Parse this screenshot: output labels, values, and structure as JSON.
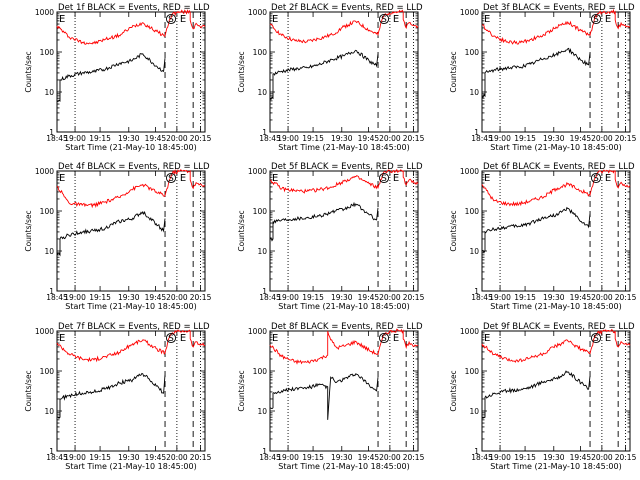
{
  "chart_data": [
    {
      "type": "line",
      "title": "Det 1f BLACK = Events, RED = LLD",
      "xlabel": "Start Time (21-May-10 18:45:00)",
      "ylabel": "Counts/sec",
      "yscale": "log",
      "ylim": [
        1,
        1000
      ],
      "xlim": [
        0,
        100
      ],
      "ytick_labels": [
        "1000",
        "100",
        "10",
        "1"
      ],
      "xtick_labels": [
        "18:45",
        "19:00",
        "19:15",
        "19:30",
        "19:45",
        "20:00",
        "20:15"
      ],
      "markers": {
        "left": "E",
        "middle": [
          "S",
          "E"
        ]
      },
      "series": [
        {
          "name": "LLD",
          "color": "#ff0000",
          "x": [
            0,
            8,
            17,
            25,
            33,
            42,
            50,
            58,
            67,
            73,
            73,
            76,
            78,
            83,
            87,
            90,
            90,
            92,
            94,
            96,
            98,
            100
          ],
          "y": [
            450,
            240,
            175,
            165,
            210,
            260,
            410,
            540,
            330,
            250,
            250,
            650,
            900,
            1000,
            1000,
            1000,
            620,
            380,
            520,
            460,
            440,
            430
          ]
        },
        {
          "name": "Events",
          "color": "#000000",
          "x": [
            0,
            2,
            2,
            8,
            17,
            25,
            33,
            42,
            50,
            58,
            67,
            72,
            73
          ],
          "y": [
            6,
            6,
            20,
            25,
            30,
            32,
            38,
            52,
            60,
            90,
            45,
            33,
            70
          ]
        }
      ]
    },
    {
      "type": "line",
      "title": "Det 2f BLACK = Events, RED = LLD",
      "xlabel": "Start Time (21-May-10 18:45:00)",
      "ylabel": "Counts/sec",
      "yscale": "log",
      "ylim": [
        1,
        1000
      ],
      "xlim": [
        0,
        100
      ],
      "ytick_labels": [
        "1000",
        "100",
        "10",
        "1"
      ],
      "xtick_labels": [
        "18:45",
        "19:00",
        "19:15",
        "19:30",
        "19:45",
        "20:00",
        "20:15"
      ],
      "markers": {
        "left": "E",
        "middle": [
          "S",
          "E"
        ]
      },
      "series": [
        {
          "name": "LLD",
          "color": "#ff0000",
          "x": [
            0,
            8,
            17,
            25,
            33,
            42,
            50,
            58,
            67,
            73,
            73,
            76,
            78,
            83,
            87,
            90,
            90,
            92,
            94,
            96,
            98,
            100
          ],
          "y": [
            480,
            260,
            190,
            180,
            215,
            270,
            430,
            580,
            350,
            270,
            270,
            700,
            900,
            1000,
            1000,
            1000,
            650,
            400,
            540,
            470,
            450,
            440
          ]
        },
        {
          "name": "Events",
          "color": "#000000",
          "x": [
            0,
            2,
            2,
            8,
            17,
            25,
            33,
            42,
            50,
            58,
            67,
            72,
            73
          ],
          "y": [
            7,
            7,
            28,
            33,
            38,
            40,
            48,
            65,
            80,
            110,
            60,
            45,
            90
          ]
        }
      ]
    },
    {
      "type": "line",
      "title": "Det 3f BLACK = Events, RED = LLD",
      "xlabel": "Start Time (21-May-10 18:45:00)",
      "ylabel": "Counts/sec",
      "yscale": "log",
      "ylim": [
        1,
        1000
      ],
      "xlim": [
        0,
        100
      ],
      "ytick_labels": [
        "1000",
        "100",
        "10",
        "1"
      ],
      "xtick_labels": [
        "18:45",
        "19:00",
        "19:15",
        "19:30",
        "19:45",
        "20:00",
        "20:15"
      ],
      "markers": {
        "left": "E",
        "middle": [
          "S",
          "E"
        ]
      },
      "series": [
        {
          "name": "LLD",
          "color": "#ff0000",
          "x": [
            0,
            8,
            17,
            25,
            33,
            42,
            50,
            58,
            67,
            73,
            73,
            76,
            78,
            83,
            87,
            90,
            90,
            92,
            94,
            96,
            98,
            100
          ],
          "y": [
            470,
            250,
            180,
            170,
            205,
            265,
            420,
            560,
            340,
            260,
            260,
            680,
            900,
            1000,
            1000,
            1000,
            630,
            390,
            530,
            460,
            445,
            430
          ]
        },
        {
          "name": "Events",
          "color": "#000000",
          "x": [
            0,
            2,
            2,
            8,
            17,
            25,
            33,
            42,
            50,
            58,
            67,
            72,
            73
          ],
          "y": [
            8,
            8,
            30,
            35,
            40,
            42,
            50,
            70,
            85,
            120,
            62,
            48,
            95
          ]
        }
      ]
    },
    {
      "type": "line",
      "title": "Det 4f BLACK = Events, RED = LLD",
      "xlabel": "Start Time (21-May-10 18:45:00)",
      "ylabel": "Counts/sec",
      "yscale": "log",
      "ylim": [
        1,
        1000
      ],
      "xlim": [
        0,
        100
      ],
      "ytick_labels": [
        "1000",
        "100",
        "10",
        "1"
      ],
      "xtick_labels": [
        "18:45",
        "19:00",
        "19:15",
        "19:30",
        "19:45",
        "20:00",
        "20:15"
      ],
      "markers": {
        "left": "E",
        "middle": [
          "S",
          "E"
        ]
      },
      "series": [
        {
          "name": "LLD",
          "color": "#ff0000",
          "x": [
            0,
            8,
            17,
            25,
            33,
            42,
            50,
            58,
            67,
            73,
            73,
            76,
            78,
            83,
            87,
            90,
            90,
            92,
            94,
            96,
            98,
            100
          ],
          "y": [
            420,
            160,
            140,
            140,
            170,
            220,
            340,
            460,
            300,
            240,
            240,
            600,
            900,
            1000,
            1000,
            1000,
            600,
            370,
            510,
            450,
            430,
            420
          ]
        },
        {
          "name": "Events",
          "color": "#000000",
          "x": [
            0,
            2,
            2,
            8,
            17,
            25,
            33,
            42,
            50,
            58,
            67,
            72,
            73
          ],
          "y": [
            8,
            8,
            20,
            25,
            30,
            32,
            38,
            55,
            62,
            95,
            48,
            32,
            65
          ]
        }
      ]
    },
    {
      "type": "line",
      "title": "Det 5f BLACK = Events, RED = LLD",
      "xlabel": "Start Time (21-May-10 18:45:00)",
      "ylabel": "Counts/sec",
      "yscale": "log",
      "ylim": [
        1,
        1000
      ],
      "xlim": [
        0,
        100
      ],
      "ytick_labels": [
        "1000",
        "100",
        "10",
        "1"
      ],
      "xtick_labels": [
        "18:45",
        "19:00",
        "19:15",
        "19:30",
        "19:45",
        "20:00",
        "20:15"
      ],
      "markers": {
        "left": "E",
        "middle": [
          "S",
          "E"
        ]
      },
      "series": [
        {
          "name": "LLD",
          "color": "#ff0000",
          "x": [
            0,
            8,
            17,
            25,
            33,
            42,
            50,
            58,
            67,
            73,
            73,
            76,
            78,
            83,
            87,
            90,
            90,
            92,
            94,
            96,
            98,
            100
          ],
          "y": [
            600,
            360,
            320,
            310,
            340,
            400,
            560,
            720,
            480,
            380,
            380,
            800,
            950,
            1000,
            1000,
            1000,
            700,
            450,
            600,
            520,
            500,
            480
          ]
        },
        {
          "name": "Events",
          "color": "#000000",
          "x": [
            0,
            2,
            2,
            8,
            17,
            25,
            33,
            42,
            50,
            58,
            67,
            72,
            73
          ],
          "y": [
            20,
            20,
            55,
            60,
            65,
            68,
            75,
            95,
            110,
            150,
            80,
            60,
            120
          ]
        }
      ]
    },
    {
      "type": "line",
      "title": "Det 6f BLACK = Events, RED = LLD",
      "xlabel": "Start Time (21-May-10 18:45:00)",
      "ylabel": "Counts/sec",
      "yscale": "log",
      "ylim": [
        1,
        1000
      ],
      "xlim": [
        0,
        100
      ],
      "ytick_labels": [
        "1000",
        "100",
        "10",
        "1"
      ],
      "xtick_labels": [
        "18:45",
        "19:00",
        "19:15",
        "19:30",
        "19:45",
        "20:00",
        "20:15"
      ],
      "markers": {
        "left": "E",
        "middle": [
          "S",
          "E"
        ]
      },
      "series": [
        {
          "name": "LLD",
          "color": "#ff0000",
          "x": [
            0,
            8,
            17,
            25,
            33,
            42,
            50,
            58,
            67,
            73,
            73,
            76,
            78,
            83,
            87,
            90,
            90,
            92,
            94,
            96,
            98,
            100
          ],
          "y": [
            460,
            180,
            150,
            150,
            180,
            230,
            360,
            470,
            320,
            250,
            250,
            640,
            900,
            1000,
            1000,
            1000,
            620,
            380,
            520,
            460,
            440,
            430
          ]
        },
        {
          "name": "Events",
          "color": "#000000",
          "x": [
            0,
            2,
            2,
            8,
            17,
            25,
            33,
            42,
            50,
            58,
            67,
            72,
            73
          ],
          "y": [
            10,
            10,
            30,
            35,
            40,
            42,
            50,
            68,
            80,
            115,
            55,
            40,
            85
          ]
        }
      ]
    },
    {
      "type": "line",
      "title": "Det 7f BLACK = Events, RED = LLD",
      "xlabel": "Start Time (21-May-10 18:45:00)",
      "ylabel": "Counts/sec",
      "yscale": "log",
      "ylim": [
        1,
        1000
      ],
      "xlim": [
        0,
        100
      ],
      "ytick_labels": [
        "1000",
        "100",
        "10",
        "1"
      ],
      "xtick_labels": [
        "18:45",
        "19:00",
        "19:15",
        "19:30",
        "19:45",
        "20:00",
        "20:15"
      ],
      "markers": {
        "left": "E",
        "middle": [
          "S",
          "E"
        ]
      },
      "series": [
        {
          "name": "LLD",
          "color": "#ff0000",
          "x": [
            0,
            8,
            17,
            25,
            33,
            42,
            50,
            58,
            67,
            73,
            73,
            76,
            78,
            83,
            87,
            90,
            90,
            92,
            94,
            96,
            98,
            100
          ],
          "y": [
            500,
            270,
            200,
            190,
            230,
            290,
            450,
            600,
            360,
            280,
            280,
            700,
            900,
            1000,
            1000,
            1000,
            640,
            400,
            540,
            470,
            450,
            440
          ]
        },
        {
          "name": "Events",
          "color": "#000000",
          "x": [
            0,
            2,
            2,
            8,
            17,
            25,
            33,
            42,
            50,
            58,
            67,
            72,
            73
          ],
          "y": [
            7,
            7,
            20,
            24,
            28,
            30,
            36,
            50,
            58,
            85,
            42,
            28,
            80
          ]
        }
      ]
    },
    {
      "type": "line",
      "title": "Det 8f BLACK = Events, RED = LLD",
      "xlabel": "Start Time (21-May-10 18:45:00)",
      "ylabel": "Counts/sec",
      "yscale": "log",
      "ylim": [
        1,
        1000
      ],
      "xlim": [
        0,
        100
      ],
      "ytick_labels": [
        "1000",
        "100",
        "10",
        "1"
      ],
      "xtick_labels": [
        "18:45",
        "19:00",
        "19:15",
        "19:30",
        "19:45",
        "20:00",
        "20:15"
      ],
      "markers": {
        "left": "E",
        "middle": [
          "S",
          "E"
        ]
      },
      "series": [
        {
          "name": "LLD",
          "color": "#ff0000",
          "x": [
            0,
            8,
            17,
            25,
            33,
            39,
            39,
            41,
            45,
            50,
            58,
            67,
            73,
            73,
            76,
            78,
            83,
            87,
            90,
            90,
            92,
            94,
            96,
            98,
            100
          ],
          "y": [
            450,
            230,
            170,
            165,
            200,
            250,
            1000,
            600,
            380,
            420,
            540,
            330,
            260,
            260,
            660,
            900,
            1000,
            1000,
            1000,
            630,
            390,
            530,
            460,
            445,
            430
          ]
        },
        {
          "name": "Events",
          "color": "#000000",
          "x": [
            0,
            2,
            2,
            8,
            17,
            25,
            33,
            39,
            39,
            41,
            45,
            50,
            58,
            67,
            72,
            73
          ],
          "y": [
            12,
            12,
            28,
            32,
            36,
            38,
            45,
            40,
            6,
            70,
            52,
            62,
            85,
            45,
            32,
            70
          ]
        }
      ]
    },
    {
      "type": "line",
      "title": "Det 9f BLACK = Events, RED = LLD",
      "xlabel": "Start Time (21-May-10 18:45:00)",
      "ylabel": "Counts/sec",
      "yscale": "log",
      "ylim": [
        1,
        1000
      ],
      "xlim": [
        0,
        100
      ],
      "ytick_labels": [
        "1000",
        "100",
        "10",
        "1"
      ],
      "xtick_labels": [
        "18:45",
        "19:00",
        "19:15",
        "19:30",
        "19:45",
        "20:00",
        "20:15"
      ],
      "markers": {
        "left": "E",
        "middle": [
          "S",
          "E"
        ]
      },
      "series": [
        {
          "name": "LLD",
          "color": "#ff0000",
          "x": [
            0,
            8,
            17,
            25,
            33,
            42,
            50,
            58,
            67,
            73,
            73,
            76,
            78,
            83,
            87,
            90,
            90,
            92,
            94,
            96,
            98,
            100
          ],
          "y": [
            480,
            260,
            190,
            180,
            215,
            270,
            430,
            570,
            350,
            270,
            270,
            690,
            900,
            1000,
            1000,
            1000,
            640,
            400,
            540,
            470,
            450,
            440
          ]
        },
        {
          "name": "Events",
          "color": "#000000",
          "x": [
            0,
            2,
            2,
            8,
            17,
            25,
            33,
            42,
            50,
            58,
            67,
            72,
            73
          ],
          "y": [
            7,
            7,
            22,
            27,
            32,
            34,
            40,
            55,
            65,
            95,
            50,
            35,
            75
          ]
        }
      ]
    }
  ]
}
